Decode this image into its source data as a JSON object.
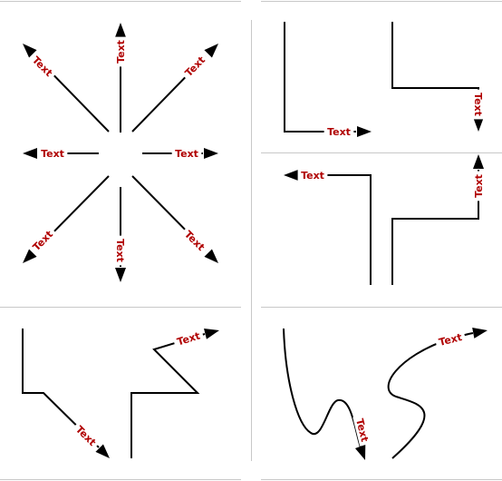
{
  "canvas": {
    "background": "#ffffff"
  },
  "colors": {
    "line": "#000000",
    "label": "#b00000",
    "panel_rule": "#c8c8c8"
  },
  "panels": [
    {
      "name": "radial-straight-arrows",
      "connectors": [
        {
          "name": "arrow-north",
          "label": "Text"
        },
        {
          "name": "arrow-northeast",
          "label": "Text"
        },
        {
          "name": "arrow-east",
          "label": "Text"
        },
        {
          "name": "arrow-southeast",
          "label": "Text"
        },
        {
          "name": "arrow-south",
          "label": "Text"
        },
        {
          "name": "arrow-southwest",
          "label": "Text"
        },
        {
          "name": "arrow-west",
          "label": "Text"
        },
        {
          "name": "arrow-northwest",
          "label": "Text"
        }
      ]
    },
    {
      "name": "elbow-connectors-down",
      "connectors": [
        {
          "name": "elbow-l-shape",
          "label": "Text"
        },
        {
          "name": "elbow-step-down",
          "label": "Text"
        }
      ]
    },
    {
      "name": "elbow-connectors-up",
      "connectors": [
        {
          "name": "elbow-up-left",
          "label": "Text"
        },
        {
          "name": "elbow-up-right",
          "label": "Text"
        }
      ]
    },
    {
      "name": "polyline-connectors",
      "connectors": [
        {
          "name": "polyline-diagonal",
          "label": "Text"
        },
        {
          "name": "polyline-zigzag",
          "label": "Text"
        }
      ]
    },
    {
      "name": "curved-connectors",
      "connectors": [
        {
          "name": "curve-wave-down",
          "label": "Text"
        },
        {
          "name": "curve-s-up",
          "label": "Text"
        }
      ]
    }
  ]
}
